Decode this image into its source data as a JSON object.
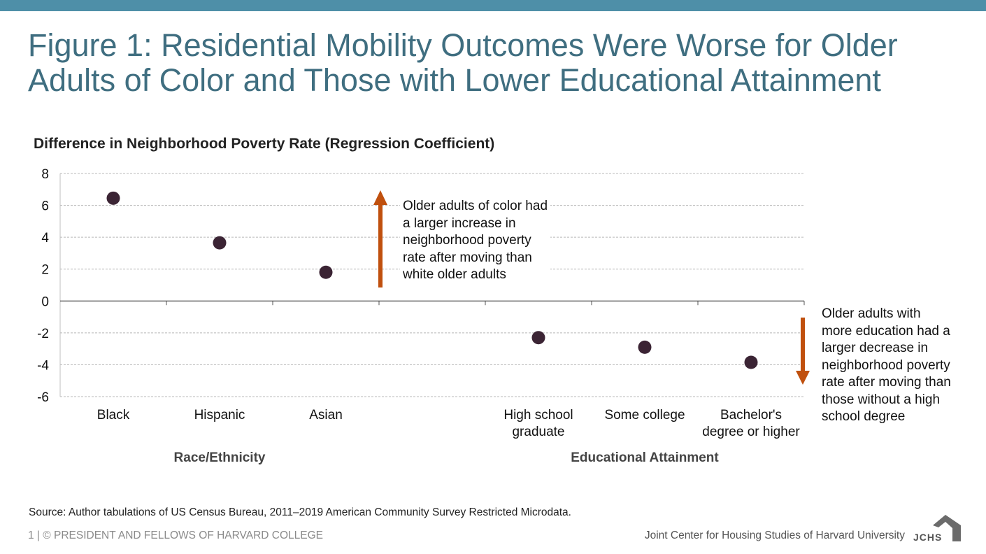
{
  "title_lines": [
    "Figure 1: Residential Mobility Outcomes Were Worse for Older",
    "Adults of Color and Those with Lower Educational Attainment"
  ],
  "chart_data": {
    "type": "scatter",
    "title": "Figure 1: Residential Mobility Outcomes Were Worse for Older Adults of Color and Those with Lower Educational Attainment",
    "ylabel": "Difference in Neighborhood Poverty Rate (Regression Coefficient)",
    "ylim": [
      -6,
      8
    ],
    "yticks": [
      8,
      6,
      4,
      2,
      0,
      -2,
      -4,
      -6
    ],
    "grid": true,
    "groups": [
      {
        "label": "Race/Ethnicity",
        "categories": [
          "Black",
          "Hispanic",
          "Asian"
        ]
      },
      {
        "label": "Educational Attainment",
        "categories": [
          "High school graduate",
          "Some college",
          "Bachelor's degree or higher"
        ]
      }
    ],
    "categories": [
      "Black",
      "Hispanic",
      "Asian",
      "",
      "High school graduate",
      "Some college",
      "Bachelor's degree or higher"
    ],
    "category_labels": [
      [
        "Black"
      ],
      [
        "Hispanic"
      ],
      [
        "Asian"
      ],
      [],
      [
        "High school",
        "graduate"
      ],
      [
        "Some college"
      ],
      [
        "Bachelor's",
        "degree or higher"
      ]
    ],
    "values": [
      6.45,
      3.65,
      1.8,
      null,
      -2.3,
      -2.9,
      -3.85
    ],
    "point_color": "#3b2434",
    "arrow_color": "#c0500e",
    "annotations": [
      {
        "direction": "up",
        "lines": [
          "Older adults of color had",
          "a larger increase in",
          "neighborhood poverty",
          "rate after moving than",
          "white older adults"
        ]
      },
      {
        "direction": "down",
        "lines": [
          "Older adults with",
          "more education had a",
          "larger decrease in",
          "neighborhood poverty",
          "rate after moving than",
          "those without a high",
          "school degree"
        ]
      }
    ]
  },
  "source": "Source: Author tabulations of US Census Bureau, 2011–2019 American Community Survey Restricted Microdata.",
  "footer": {
    "left": "1 | © PRESIDENT AND FELLOWS OF HARVARD COLLEGE",
    "right": "Joint Center for Housing Studies of Harvard University",
    "logo_text": "JCHS"
  },
  "colors": {
    "top_bar": "#4e8fa8",
    "title": "#3f6e80"
  }
}
